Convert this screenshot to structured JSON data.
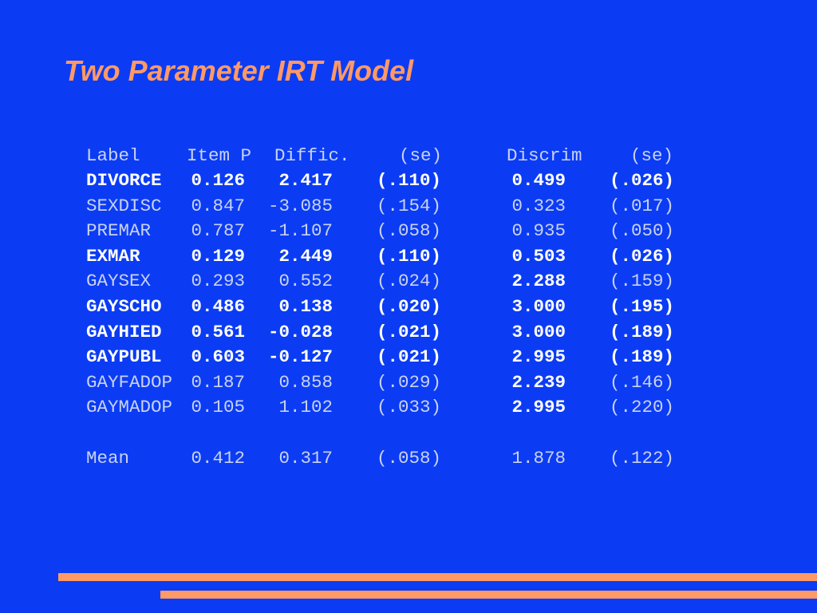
{
  "title": "Two Parameter IRT Model",
  "table": {
    "header": [
      "Label",
      "Item P",
      "Diffic.",
      "(se)",
      "Discrim",
      "(se)"
    ],
    "rows": [
      [
        "DIVORCE",
        "0.126",
        "2.417",
        "(.110)",
        "0.499",
        "(.026)"
      ],
      [
        "SEXDISC",
        "0.847",
        "-3.085",
        "(.154)",
        "0.323",
        "(.017)"
      ],
      [
        "PREMAR",
        "0.787",
        "-1.107",
        "(.058)",
        "0.935",
        "(.050)"
      ],
      [
        "EXMAR",
        "0.129",
        "2.449",
        "(.110)",
        "0.503",
        "(.026)"
      ],
      [
        "GAYSEX",
        "0.293",
        "0.552",
        "(.024)",
        "2.288",
        "(.159)"
      ],
      [
        "GAYSCHO",
        "0.486",
        "0.138",
        "(.020)",
        "3.000",
        "(.195)"
      ],
      [
        "GAYHIED",
        "0.561",
        "-0.028",
        "(.021)",
        "3.000",
        "(.189)"
      ],
      [
        "GAYPUBL",
        "0.603",
        "-0.127",
        "(.021)",
        "2.995",
        "(.189)"
      ],
      [
        "GAYFADOP",
        "0.187",
        "0.858",
        "(.029)",
        "2.239",
        "(.146)"
      ],
      [
        "GAYMADOP",
        "0.105",
        "1.102",
        "(.033)",
        "2.995",
        "(.220)"
      ],
      [
        "Mean",
        "0.412",
        "0.317",
        "(.058)",
        "1.878",
        "(.122)"
      ]
    ]
  }
}
